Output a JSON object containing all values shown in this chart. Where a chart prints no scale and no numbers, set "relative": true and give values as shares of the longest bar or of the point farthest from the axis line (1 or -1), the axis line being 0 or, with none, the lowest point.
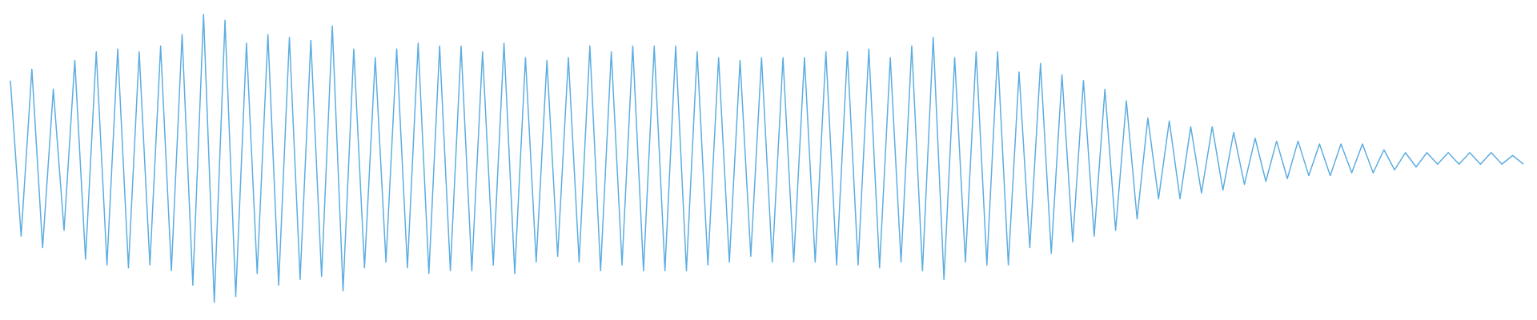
{
  "chart_data": {
    "type": "line",
    "relative": true,
    "categories": [
      null,
      null,
      null,
      null,
      null,
      null,
      null,
      null,
      null,
      null,
      null,
      null,
      null,
      null,
      null,
      null,
      null,
      null,
      null,
      null,
      null,
      null,
      null,
      null,
      null,
      null,
      null,
      null,
      null,
      null,
      null,
      null,
      null,
      null,
      null,
      null,
      null,
      null,
      null,
      null,
      null,
      null,
      null,
      null,
      null,
      null,
      null,
      null,
      null,
      null,
      null,
      null,
      null,
      null,
      null,
      null,
      null,
      null,
      null,
      null,
      null,
      null,
      null,
      null,
      null,
      null,
      null,
      null,
      null,
      null,
      null,
      null,
      null,
      null,
      null,
      null,
      null,
      null,
      null,
      null,
      null,
      null,
      null,
      null,
      null,
      null,
      null,
      null,
      null,
      null,
      null,
      null,
      null,
      null,
      null,
      null,
      null,
      null,
      null,
      null,
      null,
      null,
      null,
      null,
      null,
      null,
      null,
      null,
      null,
      null,
      null,
      null,
      null,
      null,
      null,
      null,
      null,
      null,
      null,
      null,
      null,
      null,
      null,
      null,
      null,
      null,
      null,
      null,
      null,
      null,
      null,
      null,
      null,
      null,
      null,
      null,
      null,
      null,
      null,
      null,
      null,
      null
    ],
    "series": [
      {
        "color": "#5dade2",
        "values": [
          0.77,
          0.23,
          0.81,
          0.19,
          0.74,
          0.25,
          0.84,
          0.15,
          0.87,
          0.13,
          0.88,
          0.12,
          0.87,
          0.13,
          0.89,
          0.11,
          0.93,
          0.06,
          1,
          0,
          0.98,
          0.02,
          0.9,
          0.1,
          0.93,
          0.06,
          0.92,
          0.08,
          0.91,
          0.09,
          0.96,
          0.04,
          0.88,
          0.12,
          0.85,
          0.14,
          0.88,
          0.12,
          0.9,
          0.1,
          0.89,
          0.11,
          0.89,
          0.11,
          0.87,
          0.13,
          0.9,
          0.1,
          0.85,
          0.14,
          0.84,
          0.16,
          0.85,
          0.14,
          0.89,
          0.11,
          0.87,
          0.13,
          0.89,
          0.11,
          0.89,
          0.11,
          0.89,
          0.11,
          0.87,
          0.13,
          0.85,
          0.14,
          0.84,
          0.16,
          0.85,
          0.14,
          0.85,
          0.14,
          0.85,
          0.14,
          0.87,
          0.13,
          0.87,
          0.13,
          0.88,
          0.12,
          0.85,
          0.14,
          0.89,
          0.11,
          0.92,
          0.08,
          0.85,
          0.14,
          0.87,
          0.13,
          0.87,
          0.13,
          0.8,
          0.19,
          0.83,
          0.17,
          0.79,
          0.21,
          0.77,
          0.23,
          0.74,
          0.25,
          0.7,
          0.29,
          0.64,
          0.36,
          0.63,
          0.36,
          0.61,
          0.38,
          0.61,
          0.39,
          0.59,
          0.41,
          0.57,
          0.42,
          0.56,
          0.43,
          0.56,
          0.44,
          0.55,
          0.44,
          0.55,
          0.45,
          0.55,
          0.45,
          0.53,
          0.46,
          0.52,
          0.47,
          0.52,
          0.48,
          0.52,
          0.48,
          0.52,
          0.48,
          0.52,
          0.48,
          0.51,
          0.48
        ]
      }
    ]
  }
}
